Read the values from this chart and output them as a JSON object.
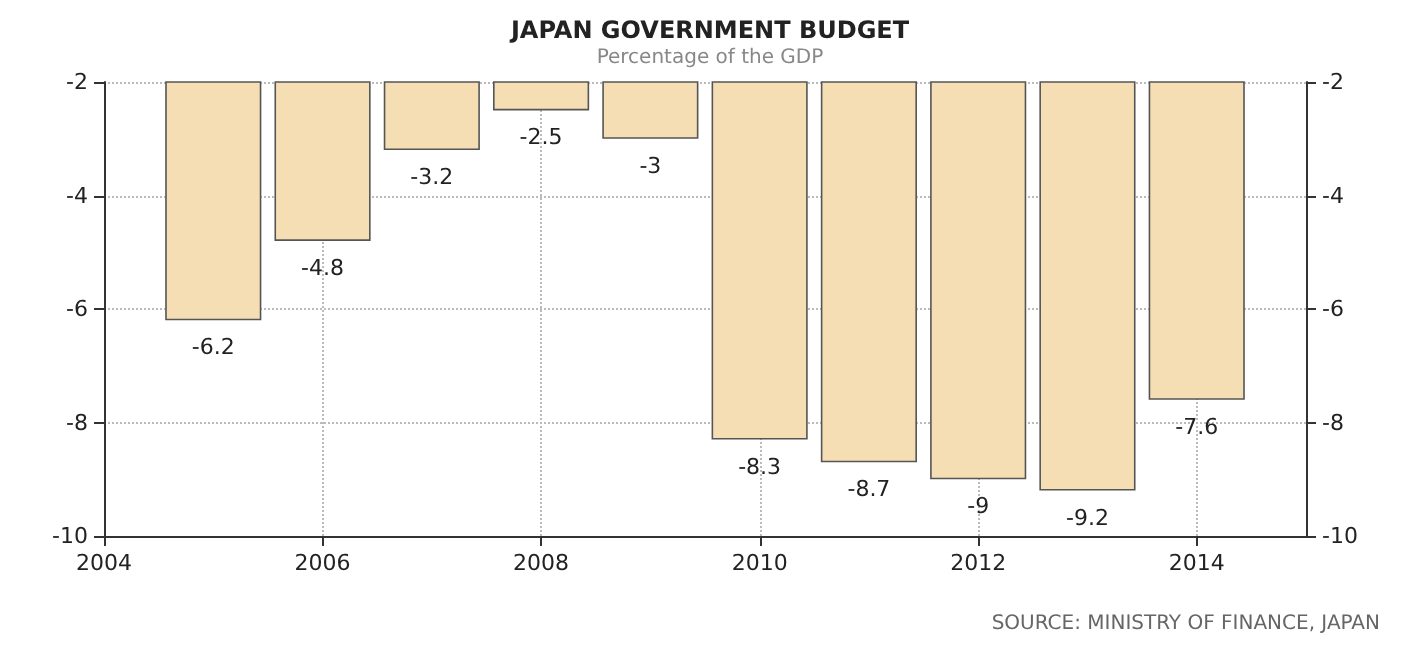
{
  "chart_data": {
    "type": "bar",
    "title": "JAPAN GOVERNMENT BUDGET",
    "subtitle": "Percentage of the GDP",
    "x": [
      2005,
      2006,
      2007,
      2008,
      2009,
      2010,
      2011,
      2012,
      2013,
      2014
    ],
    "values": [
      -6.2,
      -4.8,
      -3.2,
      -2.5,
      -3,
      -8.3,
      -8.7,
      -9,
      -9.2,
      -7.6
    ],
    "color": "#f5deb3",
    "data_labels": true,
    "xlim": [
      2004,
      2015
    ],
    "xticks": [
      2004,
      2006,
      2008,
      2010,
      2012,
      2014
    ],
    "ylim": [
      -10,
      -2
    ],
    "yticks": [
      -10,
      -8,
      -6,
      -4,
      -2
    ],
    "y2lim": [
      -10,
      -2
    ],
    "y2ticks": [
      -10,
      -8,
      -6,
      -4,
      -2
    ],
    "grid": true,
    "annotations": [
      "SOURCE: MINISTRY OF FINANCE, JAPAN"
    ]
  }
}
